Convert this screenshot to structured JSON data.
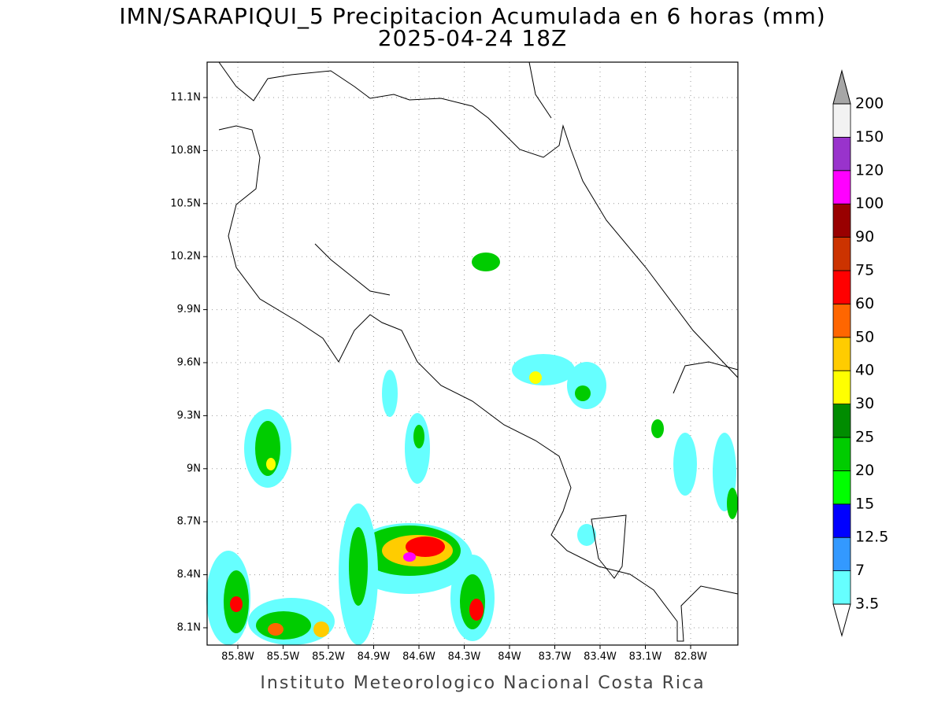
{
  "header": {
    "title": "IMN/SARAPIQUI_5 Precipitacion Acumulada en 6 horas (mm)",
    "subtitle": "2025-04-24 18Z"
  },
  "map": {
    "lat_labels": [
      "11.1N",
      "10.8N",
      "10.5N",
      "10.2N",
      "9.9N",
      "9.6N",
      "9.3N",
      "9N",
      "8.7N",
      "8.4N",
      "8.1N"
    ],
    "lon_labels": [
      "85.8W",
      "85.5W",
      "85.2W",
      "84.9W",
      "84.6W",
      "84.3W",
      "84W",
      "83.7W",
      "83.4W",
      "83.1W",
      "82.8W"
    ]
  },
  "colorbar": {
    "levels": [
      3.5,
      7,
      12.5,
      15,
      20,
      25,
      30,
      40,
      50,
      60,
      75,
      90,
      100,
      120,
      150,
      200
    ],
    "colors": [
      "#66ffff",
      "#3399ff",
      "#0000ff",
      "#00ff00",
      "#00cc00",
      "#008c00",
      "#ffff00",
      "#ffcc00",
      "#ff6600",
      "#ff0000",
      "#cc3300",
      "#990000",
      "#ff00ff",
      "#9933cc",
      "#f2f2f2"
    ],
    "over_color": "#a6a6a6",
    "under_color": "#ffffff"
  },
  "footer": "Instituto Meteorologico Nacional Costa Rica"
}
